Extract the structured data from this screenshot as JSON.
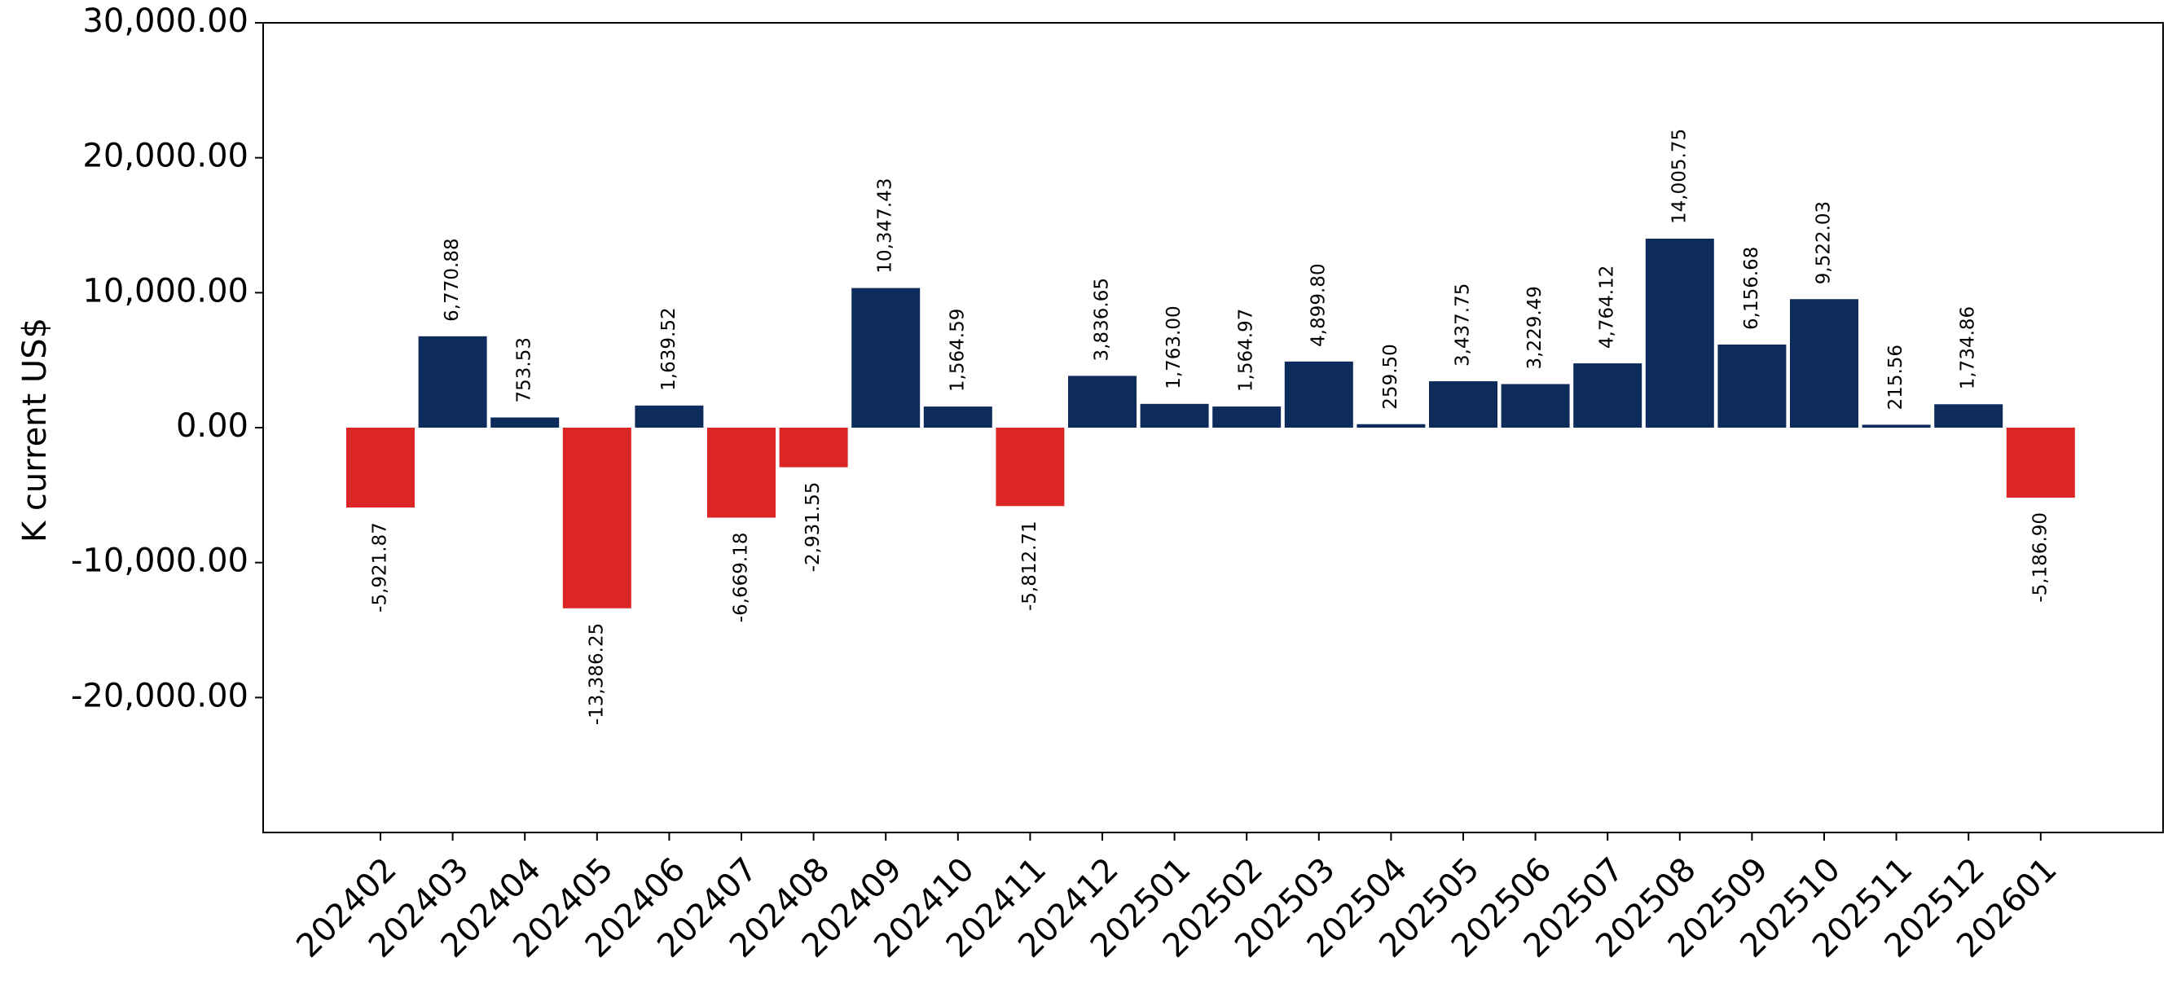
{
  "chart_data": {
    "type": "bar",
    "title": "",
    "xlabel": "",
    "ylabel": "K current US$",
    "ylim": [
      -30000,
      30000
    ],
    "yticks": [
      -20000,
      -10000,
      0,
      10000,
      20000,
      30000
    ],
    "ytick_labels": [
      "-20,000.00",
      "-10,000.00",
      "0.00",
      "10,000.00",
      "20,000.00",
      "30,000.00"
    ],
    "grid": false,
    "legend": "none",
    "colors": {
      "positive": "#0d2c5c",
      "negative": "#dc2626"
    },
    "categories": [
      "202402",
      "202403",
      "202404",
      "202405",
      "202406",
      "202407",
      "202408",
      "202409",
      "202410",
      "202411",
      "202412",
      "202501",
      "202502",
      "202503",
      "202504",
      "202505",
      "202506",
      "202507",
      "202508",
      "202509",
      "202510",
      "202511",
      "202512",
      "202601"
    ],
    "values": [
      -5921.87,
      6770.88,
      753.53,
      -13386.25,
      1639.52,
      -6669.18,
      -2931.55,
      10347.43,
      1564.59,
      -5812.71,
      3836.65,
      1763.0,
      1564.97,
      4899.8,
      259.5,
      3437.75,
      3229.49,
      4764.12,
      14005.75,
      6156.68,
      9522.03,
      215.56,
      1734.86,
      -5186.9
    ],
    "value_labels": [
      "-5,921.87",
      "6,770.88",
      "753.53",
      "-13,386.25",
      "1,639.52",
      "-6,669.18",
      "-2,931.55",
      "10,347.43",
      "1,564.59",
      "-5,812.71",
      "3,836.65",
      "1,763.00",
      "1,564.97",
      "4,899.80",
      "259.50",
      "3,437.75",
      "3,229.49",
      "4,764.12",
      "14,005.75",
      "6,156.68",
      "9,522.03",
      "215.56",
      "1,734.86",
      "-5,186.90"
    ]
  }
}
